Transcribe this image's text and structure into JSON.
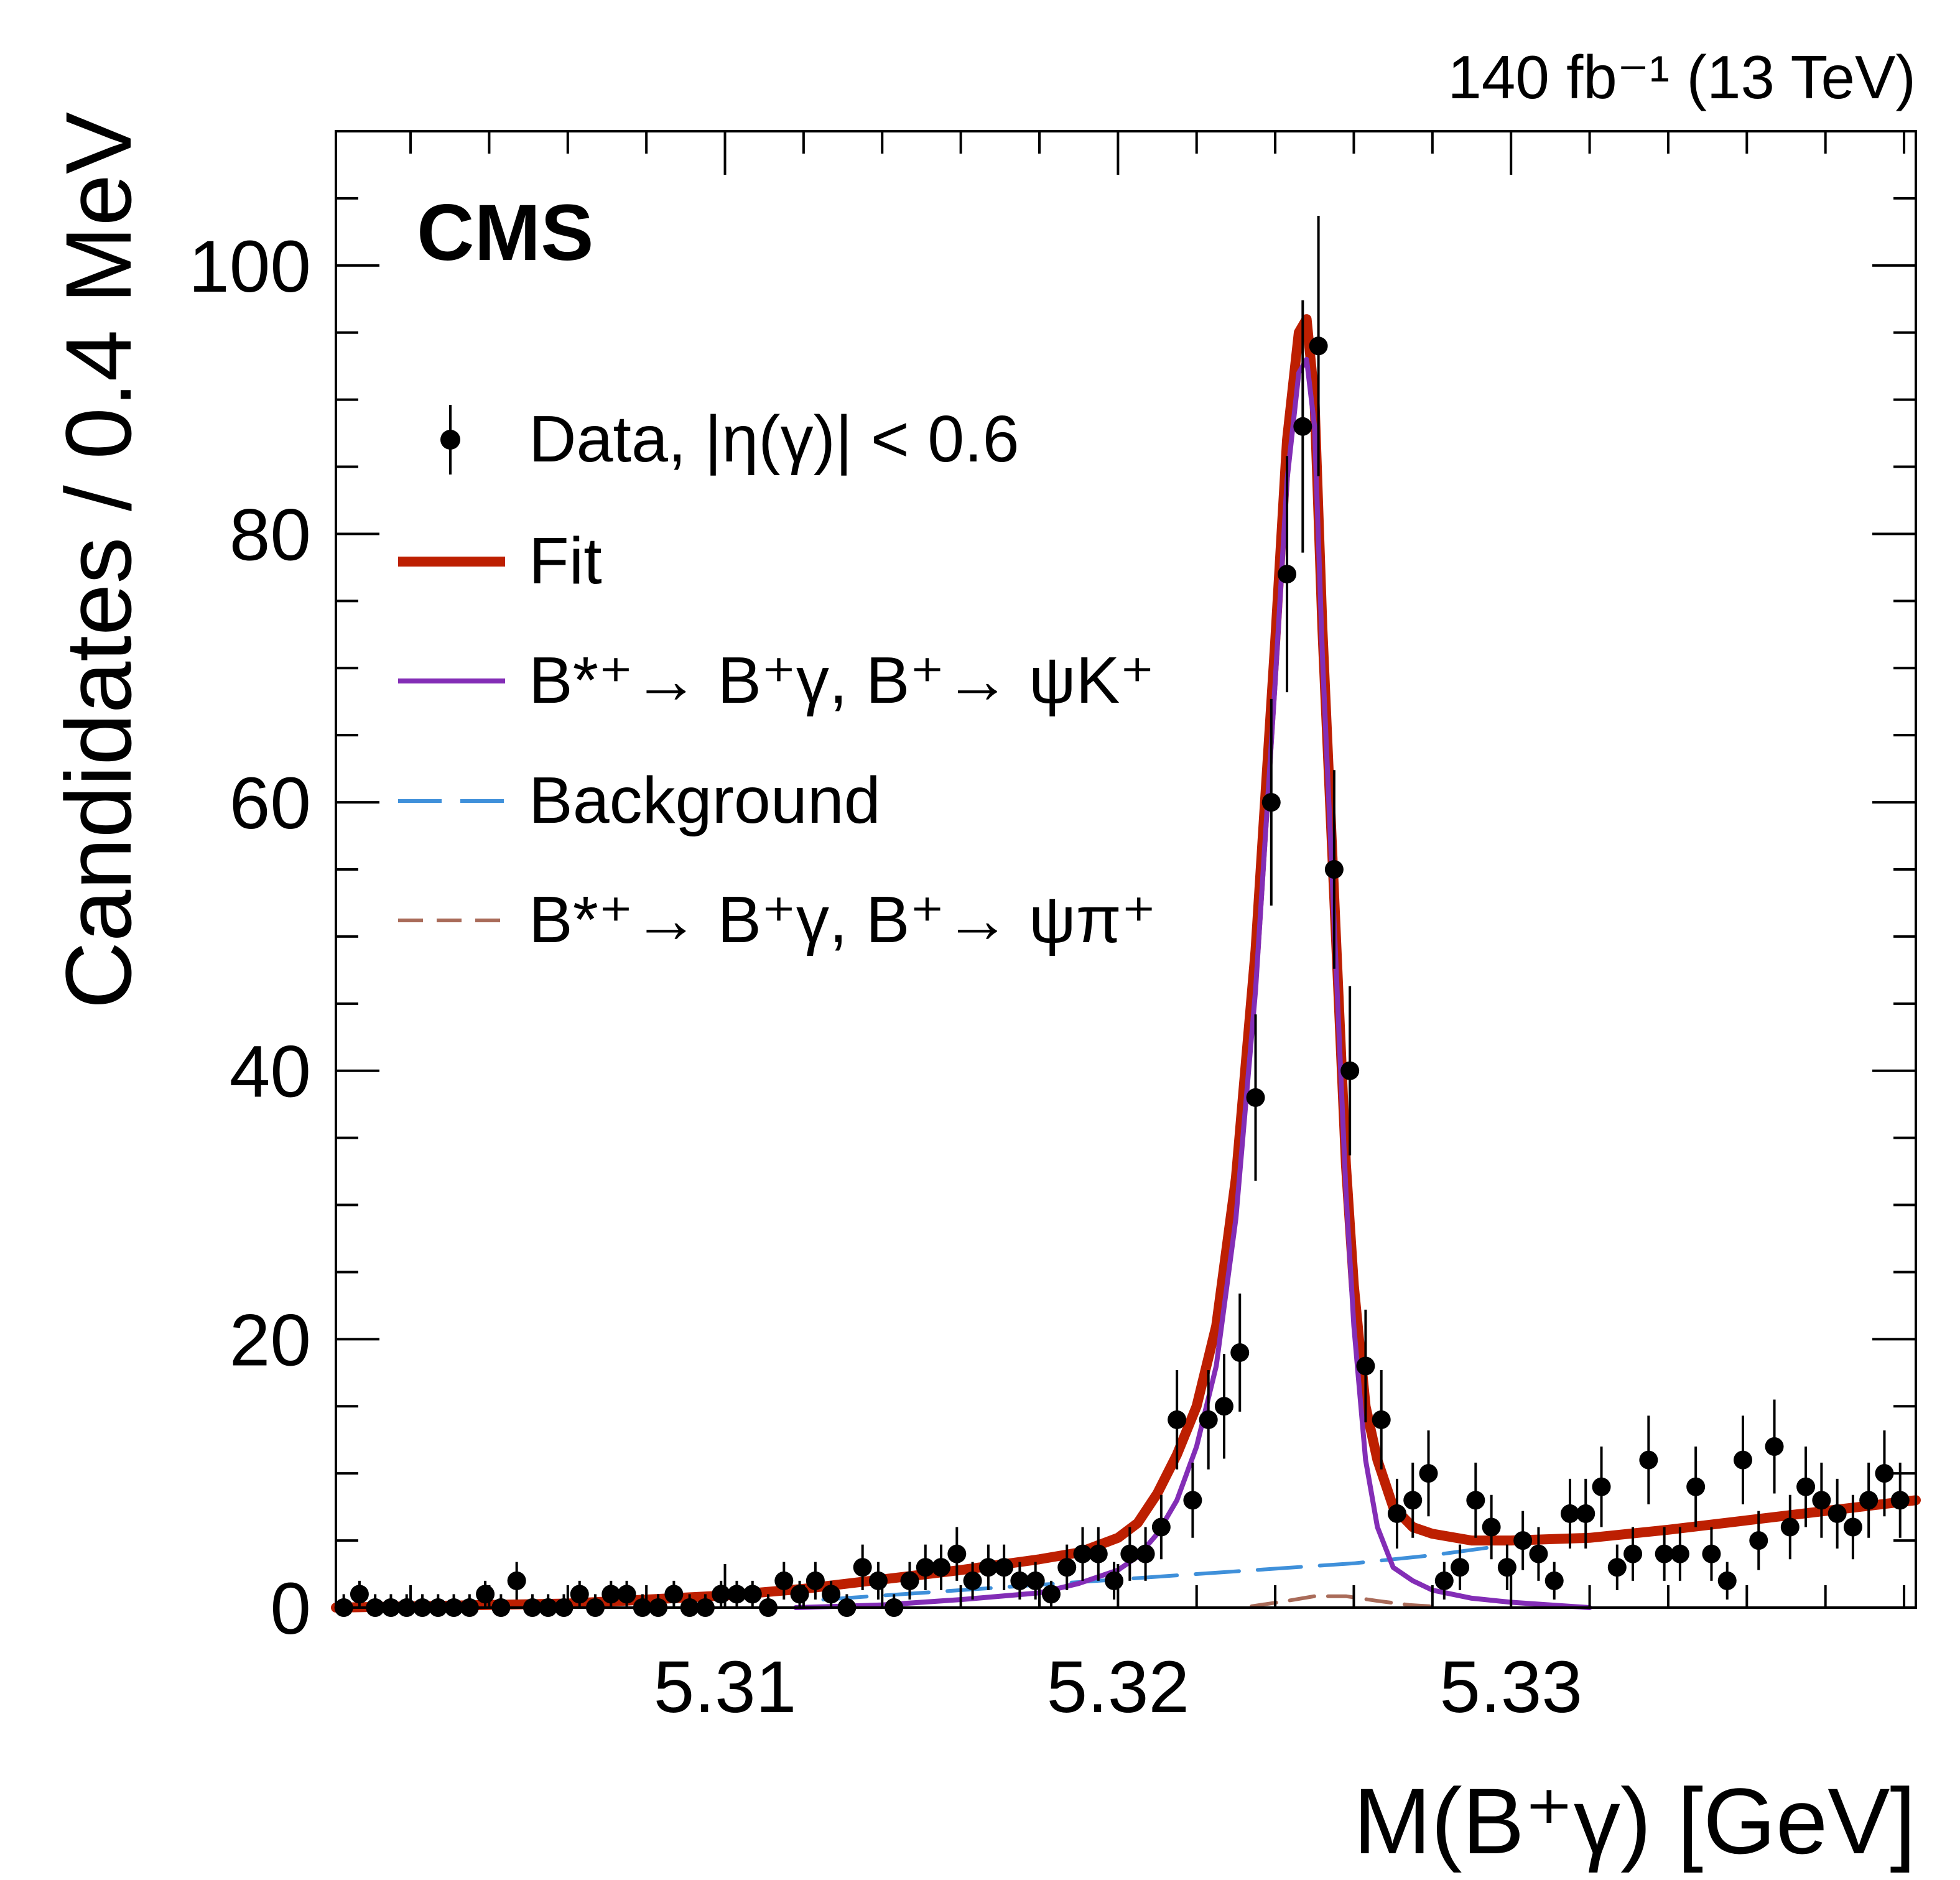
{
  "chart_data": {
    "type": "scatter",
    "experiment_label": "CMS",
    "lumi_label": "140 fb⁻¹ (13 TeV)",
    "xlabel": "M(B⁺γ) [GeV]",
    "ylabel": "Candidates / 0.4 MeV",
    "xlim": [
      5.3001,
      5.3403
    ],
    "ylim": [
      0,
      110
    ],
    "x_ticks": [
      5.31,
      5.32,
      5.33
    ],
    "x_tick_labels": [
      "5.31",
      "5.32",
      "5.33"
    ],
    "y_ticks": [
      0,
      20,
      40,
      60,
      80,
      100
    ],
    "y_tick_labels": [
      "0",
      "20",
      "40",
      "60",
      "80",
      "100"
    ],
    "legend": [
      {
        "key": "data",
        "label": "Data, |η(γ)| < 0.6"
      },
      {
        "key": "fit",
        "label": "Fit"
      },
      {
        "key": "signal_k",
        "label": "B*⁺→ B⁺γ, B⁺→ ψK⁺"
      },
      {
        "key": "background",
        "label": "Background"
      },
      {
        "key": "signal_pi",
        "label": "B*⁺→ B⁺γ, B⁺→ ψπ⁺"
      }
    ],
    "colors": {
      "data": "#000000",
      "fit": "#bd1f01",
      "signal_k": "#832db6",
      "background": "#3f90da",
      "signal_pi": "#a96b59"
    },
    "series": [
      {
        "name": "Data",
        "x": [
          5.3003,
          5.3007,
          5.3011,
          5.3015,
          5.3019,
          5.3023,
          5.3027,
          5.3031,
          5.3035,
          5.3039,
          5.3043,
          5.3047,
          5.3051,
          5.3055,
          5.3059,
          5.3063,
          5.3067,
          5.3071,
          5.3075,
          5.3079,
          5.3083,
          5.3087,
          5.3091,
          5.3095,
          5.3099,
          5.3103,
          5.3107,
          5.3111,
          5.3115,
          5.3119,
          5.3123,
          5.3127,
          5.3131,
          5.3135,
          5.3139,
          5.3143,
          5.3147,
          5.3151,
          5.3155,
          5.3159,
          5.3163,
          5.3167,
          5.3171,
          5.3175,
          5.3179,
          5.3183,
          5.3187,
          5.3191,
          5.3195,
          5.3199,
          5.3203,
          5.3207,
          5.3211,
          5.3215,
          5.3219,
          5.3223,
          5.3227,
          5.3231,
          5.3235,
          5.3239,
          5.3243,
          5.3247,
          5.3251,
          5.3255,
          5.3259,
          5.3263,
          5.3267,
          5.3271,
          5.3275,
          5.3279,
          5.3283,
          5.3287,
          5.3291,
          5.3295,
          5.3299,
          5.3303,
          5.3307,
          5.3311,
          5.3315,
          5.3319,
          5.3323,
          5.3327,
          5.3331,
          5.3335,
          5.3339,
          5.3343,
          5.3347,
          5.3351,
          5.3355,
          5.3359,
          5.3363,
          5.3367,
          5.3371,
          5.3375,
          5.3379,
          5.3383,
          5.3387,
          5.3391,
          5.3395,
          5.3399
        ],
        "y": [
          0,
          1,
          0,
          0,
          0,
          0,
          0,
          0,
          0,
          1,
          0,
          2,
          0,
          0,
          0,
          1,
          0,
          1,
          1,
          0,
          0,
          1,
          0,
          0,
          1,
          1,
          1,
          0,
          2,
          1,
          2,
          1,
          0,
          3,
          2,
          0,
          2,
          3,
          3,
          4,
          2,
          3,
          3,
          2,
          2,
          1,
          3,
          4,
          4,
          2,
          4,
          4,
          6,
          14,
          8,
          14,
          15,
          19,
          38,
          60,
          77,
          88,
          94,
          55,
          40,
          18,
          14,
          7,
          8,
          10,
          2,
          3,
          8,
          6,
          3,
          5,
          4,
          2,
          7,
          7,
          9,
          3,
          4,
          11,
          4,
          4,
          9,
          4,
          2,
          11,
          5,
          12,
          6,
          9,
          8,
          7,
          6,
          8,
          10,
          8
        ],
        "yerr": [
          1,
          1,
          1,
          1,
          1,
          1,
          1,
          1,
          1,
          1,
          1,
          1.4,
          1,
          1,
          1,
          1,
          1,
          1,
          1,
          1,
          1,
          1,
          1,
          1,
          1,
          1,
          1,
          1,
          1.4,
          1,
          1.4,
          1,
          1,
          1.7,
          1.4,
          1,
          1.4,
          1.7,
          1.7,
          2,
          1.4,
          1.7,
          1.7,
          1.4,
          1.4,
          1,
          1.7,
          2,
          2,
          1.4,
          2,
          2,
          2.4,
          3.7,
          2.8,
          3.7,
          3.9,
          4.4,
          6.2,
          7.7,
          8.8,
          9.4,
          9.7,
          7.4,
          6.3,
          4.2,
          3.7,
          2.6,
          2.8,
          3.2,
          1.4,
          1.7,
          2.8,
          2.4,
          1.7,
          2.2,
          2,
          1.4,
          2.6,
          2.6,
          3,
          1.7,
          2,
          3.3,
          2,
          2,
          3,
          2,
          1.4,
          3.3,
          2.2,
          3.5,
          2.4,
          3,
          2.8,
          2.6,
          2.4,
          2.8,
          3.2,
          2.8
        ]
      },
      {
        "name": "Fit",
        "x": [
          5.3001,
          5.306,
          5.31,
          5.312,
          5.314,
          5.316,
          5.318,
          5.319,
          5.32,
          5.3205,
          5.321,
          5.3215,
          5.322,
          5.3225,
          5.323,
          5.3235,
          5.324,
          5.3243,
          5.3246,
          5.3248,
          5.325,
          5.3252,
          5.3255,
          5.3258,
          5.326,
          5.3263,
          5.3266,
          5.327,
          5.3275,
          5.328,
          5.329,
          5.33,
          5.332,
          5.334,
          5.336,
          5.338,
          5.3403
        ],
        "y": [
          0,
          0.3,
          0.9,
          1.4,
          2.1,
          2.8,
          3.6,
          4.1,
          5.2,
          6.3,
          8.5,
          11.4,
          15,
          21,
          32,
          49,
          72,
          87,
          95,
          96,
          90,
          73,
          53,
          33,
          24,
          15,
          11,
          7.5,
          6,
          5.5,
          5,
          5,
          5.2,
          5.8,
          6.5,
          7.2,
          8
        ]
      },
      {
        "name": "Signal B⁺→ψK⁺",
        "x": [
          5.3118,
          5.314,
          5.316,
          5.318,
          5.319,
          5.32,
          5.3205,
          5.321,
          5.3215,
          5.322,
          5.3225,
          5.323,
          5.3235,
          5.324,
          5.3243,
          5.3246,
          5.3248,
          5.325,
          5.3252,
          5.3255,
          5.3258,
          5.326,
          5.3263,
          5.3266,
          5.327,
          5.3275,
          5.328,
          5.329,
          5.33,
          5.331,
          5.332
        ],
        "y": [
          0,
          0.2,
          0.6,
          1.1,
          1.8,
          2.8,
          3.8,
          5.5,
          8,
          12,
          18,
          29,
          46,
          69,
          84,
          92,
          93,
          88,
          71,
          51,
          31,
          21,
          11,
          6,
          3,
          2,
          1.3,
          0.7,
          0.4,
          0.2,
          0
        ]
      },
      {
        "name": "Background",
        "x": [
          5.3125,
          5.314,
          5.316,
          5.318,
          5.32,
          5.322,
          5.324,
          5.326,
          5.327,
          5.328,
          5.3295
        ],
        "y": [
          0.6,
          0.9,
          1.3,
          1.7,
          2.1,
          2.5,
          2.9,
          3.3,
          3.6,
          3.9,
          4.5
        ]
      },
      {
        "name": "Signal B⁺→ψπ⁺",
        "x": [
          5.3234,
          5.3242,
          5.325,
          5.3258,
          5.3266,
          5.3274,
          5.3282
        ],
        "y": [
          0.1,
          0.45,
          0.85,
          0.85,
          0.5,
          0.2,
          0.05
        ]
      }
    ]
  }
}
